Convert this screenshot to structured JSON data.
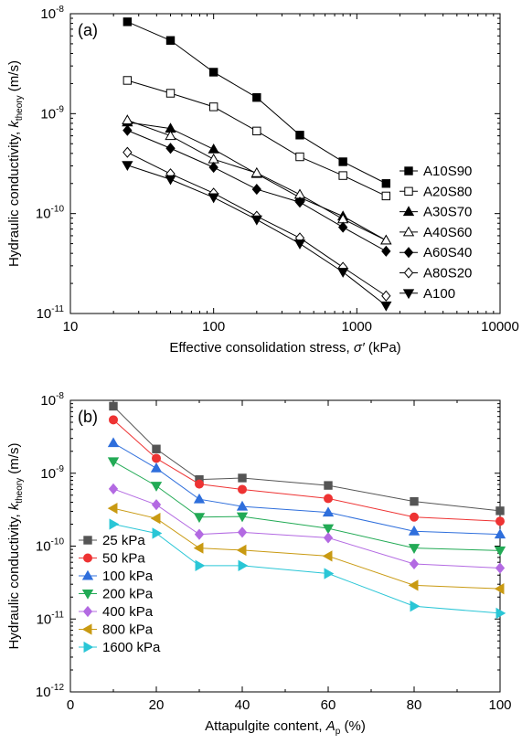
{
  "chart_data": [
    {
      "type": "line",
      "panel_label": "(a)",
      "xlabel": {
        "prefix": "Effective consolidation stress, ",
        "symbol": "σ′",
        "suffix": " (kPa)"
      },
      "ylabel": {
        "prefix": "Hydraulic conductivity, ",
        "symbol": "k",
        "sub": "theory",
        "suffix": " (m/s)"
      },
      "xscale": "log",
      "yscale": "log",
      "xlim": [
        10,
        10000
      ],
      "ylim": [
        1e-11,
        1e-08
      ],
      "xticks": [
        10,
        100,
        1000,
        10000
      ],
      "xtick_labels": [
        "10",
        "100",
        "1000",
        "10000"
      ],
      "yticks": [
        -11,
        -10,
        -9,
        -8
      ],
      "ytick_labels": [
        {
          "base": "10",
          "exp": "-11"
        },
        {
          "base": "10",
          "exp": "-10"
        },
        {
          "base": "10",
          "exp": "-9"
        },
        {
          "base": "10",
          "exp": "-8"
        }
      ],
      "legend_position": "right",
      "x": [
        25,
        50,
        100,
        200,
        400,
        800,
        1600
      ],
      "series": [
        {
          "name": "A10S90",
          "marker": "square-filled",
          "values": [
            8.3e-09,
            5.4e-09,
            2.6e-09,
            1.45e-09,
            6.1e-10,
            3.3e-10,
            2e-10
          ]
        },
        {
          "name": "A20S80",
          "marker": "square-open",
          "values": [
            2.15e-09,
            1.6e-09,
            1.17e-09,
            6.7e-10,
            3.7e-10,
            2.4e-10,
            1.5e-10
          ]
        },
        {
          "name": "A30S70",
          "marker": "triangle-up-filled",
          "values": [
            8.2e-10,
            7.1e-10,
            4.4e-10,
            2.5e-10,
            1.45e-10,
            9.4e-11,
            5.4e-11
          ]
        },
        {
          "name": "A40S60",
          "marker": "triangle-up-open",
          "values": [
            8.6e-10,
            6e-10,
            3.5e-10,
            2.55e-10,
            1.55e-10,
            8.8e-11,
            5.4e-11
          ]
        },
        {
          "name": "A60S40",
          "marker": "diamond-filled",
          "values": [
            6.8e-10,
            4.5e-10,
            2.9e-10,
            1.75e-10,
            1.3e-10,
            7.3e-11,
            4.2e-11
          ]
        },
        {
          "name": "A80S20",
          "marker": "diamond-open",
          "values": [
            4.1e-10,
            2.5e-10,
            1.6e-10,
            9.4e-11,
            5.7e-11,
            2.9e-11,
            1.5e-11
          ]
        },
        {
          "name": "A100",
          "marker": "triangle-down-filled",
          "values": [
            3.05e-10,
            2.2e-10,
            1.45e-10,
            8.7e-11,
            5e-11,
            2.6e-11,
            1.2e-11
          ]
        }
      ]
    },
    {
      "type": "line",
      "panel_label": "(b)",
      "xlabel": {
        "prefix": "Attapulgite content, ",
        "symbol": "A",
        "sub": "p",
        "suffix": " (%)"
      },
      "ylabel": {
        "prefix": "Hydraulic conductivity, ",
        "symbol": "k",
        "sub": "theory",
        "suffix": " (m/s)"
      },
      "xscale": "linear",
      "yscale": "log",
      "xlim": [
        0,
        100
      ],
      "ylim": [
        1e-12,
        1e-08
      ],
      "xticks": [
        0,
        20,
        40,
        60,
        80,
        100
      ],
      "xtick_labels": [
        "0",
        "20",
        "40",
        "60",
        "80",
        "100"
      ],
      "yticks": [
        -12,
        -11,
        -10,
        -9,
        -8
      ],
      "ytick_labels": [
        {
          "base": "10",
          "exp": "-12"
        },
        {
          "base": "10",
          "exp": "-11"
        },
        {
          "base": "10",
          "exp": "-10"
        },
        {
          "base": "10",
          "exp": "-9"
        },
        {
          "base": "10",
          "exp": "-8"
        }
      ],
      "legend_position": "bottom-left",
      "x": [
        10,
        20,
        30,
        40,
        60,
        80,
        100
      ],
      "series": [
        {
          "name": "25 kPa",
          "color": "#555555",
          "marker": "square",
          "values": [
            8.3e-09,
            2.15e-09,
            8.2e-10,
            8.6e-10,
            6.8e-10,
            4.1e-10,
            3.05e-10
          ]
        },
        {
          "name": "50 kPa",
          "color": "#ee3333",
          "marker": "circle",
          "values": [
            5.4e-09,
            1.6e-09,
            7.1e-10,
            6e-10,
            4.5e-10,
            2.5e-10,
            2.2e-10
          ]
        },
        {
          "name": "100 kPa",
          "color": "#2f6fdc",
          "marker": "triangle-up",
          "values": [
            2.6e-09,
            1.17e-09,
            4.4e-10,
            3.5e-10,
            2.9e-10,
            1.6e-10,
            1.45e-10
          ]
        },
        {
          "name": "200 kPa",
          "color": "#22aa55",
          "marker": "triangle-down",
          "values": [
            1.45e-09,
            6.7e-10,
            2.5e-10,
            2.55e-10,
            1.75e-10,
            9.4e-11,
            8.7e-11
          ]
        },
        {
          "name": "400 kPa",
          "color": "#b36ae2",
          "marker": "diamond",
          "values": [
            6.1e-10,
            3.7e-10,
            1.45e-10,
            1.55e-10,
            1.3e-10,
            5.7e-11,
            5e-11
          ]
        },
        {
          "name": "800 kPa",
          "color": "#c99a12",
          "marker": "triangle-left",
          "values": [
            3.3e-10,
            2.4e-10,
            9.4e-11,
            8.8e-11,
            7.3e-11,
            2.9e-11,
            2.6e-11
          ]
        },
        {
          "name": "1600 kPa",
          "color": "#2ac6d6",
          "marker": "triangle-right",
          "values": [
            2e-10,
            1.5e-10,
            5.4e-11,
            5.4e-11,
            4.2e-11,
            1.5e-11,
            1.2e-11
          ]
        }
      ]
    }
  ]
}
